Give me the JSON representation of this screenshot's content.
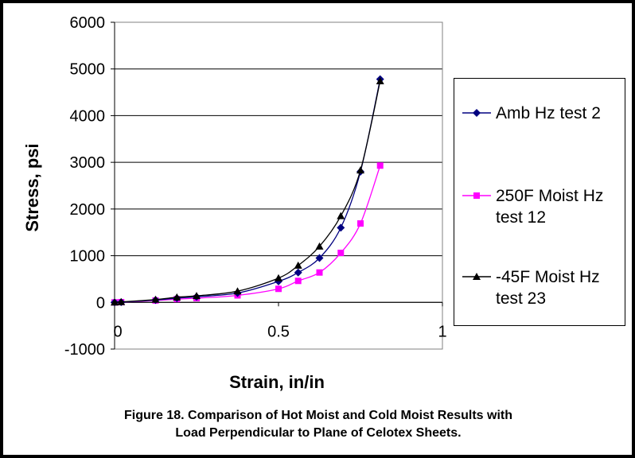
{
  "chart_data": {
    "type": "line",
    "title": "",
    "xlabel": "Strain, in/in",
    "ylabel": "Stress, psi",
    "xlim": [
      0,
      1
    ],
    "ylim": [
      -1000,
      6000
    ],
    "x_ticks": [
      "0",
      "0.5",
      "1"
    ],
    "y_ticks": [
      "-1000",
      "0",
      "1000",
      "2000",
      "3000",
      "4000",
      "5000",
      "6000"
    ],
    "grid": "horizontal major gridlines",
    "legend_position": "right",
    "series": [
      {
        "name": "Amb Hz test 2",
        "color": "#000080",
        "marker": "diamond",
        "x": [
          0,
          0.02,
          0.125,
          0.19,
          0.25,
          0.375,
          0.5,
          0.56,
          0.625,
          0.69,
          0.75,
          0.81
        ],
        "y": [
          0,
          5,
          50,
          90,
          120,
          200,
          450,
          640,
          950,
          1600,
          2800,
          4780
        ]
      },
      {
        "name": "250F Moist Hz test 12",
        "color": "#FF00FF",
        "marker": "square",
        "x": [
          0,
          0.02,
          0.125,
          0.19,
          0.25,
          0.375,
          0.5,
          0.56,
          0.625,
          0.69,
          0.75,
          0.81
        ],
        "y": [
          0,
          5,
          40,
          70,
          90,
          150,
          290,
          460,
          640,
          1060,
          1690,
          2930
        ]
      },
      {
        "name": "-45F Moist Hz test 23",
        "color": "#000000",
        "marker": "triangle",
        "x": [
          0,
          0.02,
          0.125,
          0.19,
          0.25,
          0.375,
          0.5,
          0.56,
          0.625,
          0.69,
          0.75,
          0.81
        ],
        "y": [
          0,
          10,
          60,
          110,
          140,
          240,
          520,
          790,
          1200,
          1850,
          2830,
          4740
        ]
      }
    ]
  },
  "legend": {
    "item1": "Amb Hz test 2",
    "item2": "250F Moist Hz\ntest 12",
    "item3": " -45F Moist Hz\ntest 23"
  },
  "caption": {
    "line1": "Figure 18. Comparison of Hot Moist and Cold Moist Results with",
    "line2": "Load Perpendicular to Plane of Celotex Sheets."
  }
}
